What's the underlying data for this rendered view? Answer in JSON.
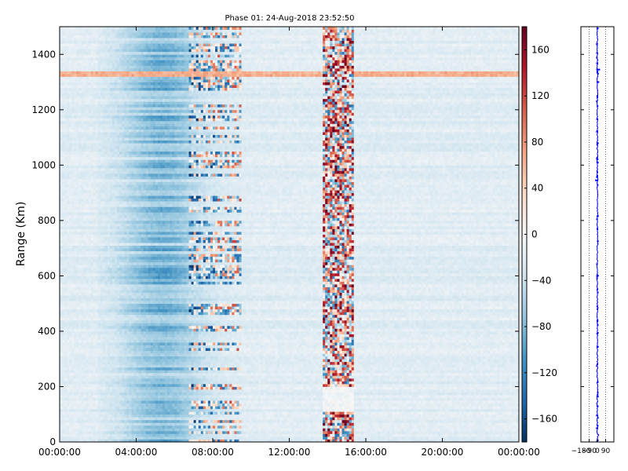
{
  "chart_data": [
    {
      "type": "heatmap",
      "title": "Phase 01: 24-Aug-2018 23:52:50",
      "xlabel": "",
      "ylabel": "Range (Km)",
      "x_ticks": [
        "00:00:00",
        "04:00:00",
        "08:00:00",
        "12:00:00",
        "16:00:00",
        "20:00:00",
        "00:00:00"
      ],
      "xlim": [
        0,
        24
      ],
      "y_ticks": [
        0,
        200,
        400,
        600,
        800,
        1000,
        1200,
        1400
      ],
      "ylim": [
        0,
        1500
      ],
      "colormap": "RdBu_r",
      "zlim": [
        -180,
        180
      ],
      "colorbar_ticks": [
        160,
        120,
        80,
        40,
        0,
        -40,
        -80,
        -120,
        -160
      ],
      "colorbar_tick_labels": [
        "160",
        "120",
        "80",
        "40",
        "0",
        "−40",
        "−80",
        "−120",
        "−160"
      ],
      "features": {
        "blue_band_hours": [
          4.0,
          9.5
        ],
        "noisy_band_hours": [
          13.8,
          15.4
        ],
        "warm_row_km": 1330,
        "noise_gap_km": [
          110,
          200
        ]
      }
    },
    {
      "type": "line",
      "x_ticks": [
        -180,
        -90,
        0,
        90
      ],
      "x_tick_labels": [
        "−180",
        "−90",
        "0",
        "90"
      ],
      "xlim": [
        -180,
        180
      ],
      "ylim": [
        0,
        1500
      ],
      "y_ticks": [
        0,
        200,
        400,
        600,
        800,
        1000,
        1200,
        1400
      ],
      "line_color": "#0000ff",
      "grid": "vertical-dotted"
    }
  ]
}
